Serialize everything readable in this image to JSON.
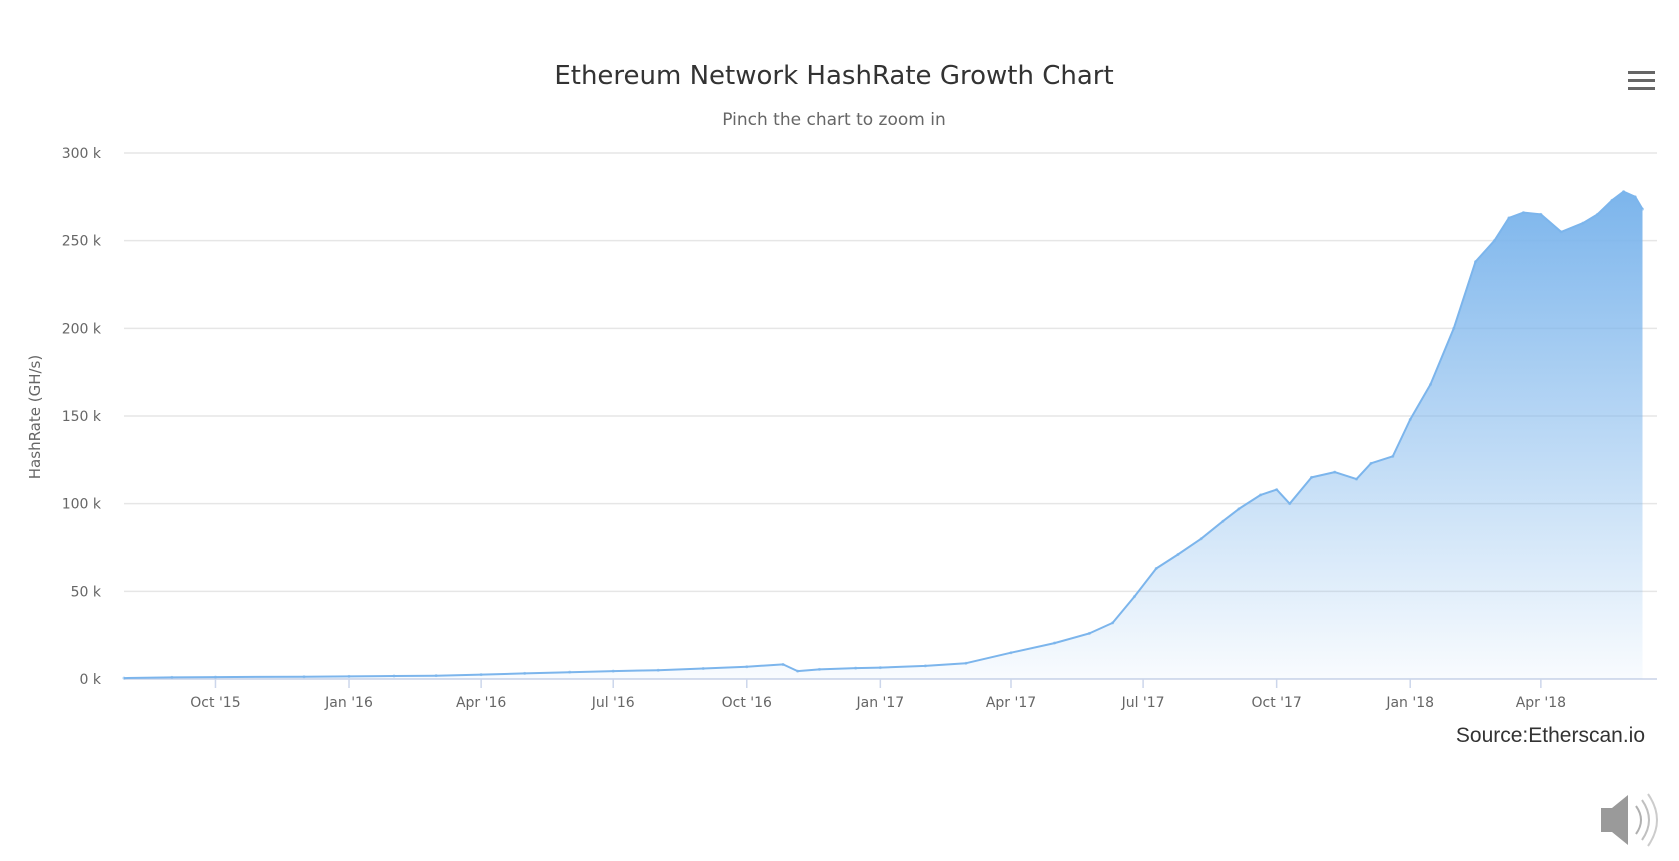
{
  "chart_data": {
    "type": "area",
    "title": "Ethereum Network HashRate Growth Chart",
    "subtitle": "Pinch the chart to zoom in",
    "xlabel": "",
    "ylabel": "HashRate (GH/s)",
    "ylim": [
      0,
      300000
    ],
    "xlim": [
      "2015-07-30",
      "2018-06-20"
    ],
    "y_ticks": [
      {
        "value": 0,
        "label": "0 k"
      },
      {
        "value": 50000,
        "label": "50 k"
      },
      {
        "value": 100000,
        "label": "100 k"
      },
      {
        "value": 150000,
        "label": "150 k"
      },
      {
        "value": 200000,
        "label": "200 k"
      },
      {
        "value": 250000,
        "label": "250 k"
      },
      {
        "value": 300000,
        "label": "300 k"
      }
    ],
    "x_ticks": [
      {
        "date": "2015-10-01",
        "label": "Oct '15"
      },
      {
        "date": "2016-01-01",
        "label": "Jan '16"
      },
      {
        "date": "2016-04-01",
        "label": "Apr '16"
      },
      {
        "date": "2016-07-01",
        "label": "Jul '16"
      },
      {
        "date": "2016-10-01",
        "label": "Oct '16"
      },
      {
        "date": "2017-01-01",
        "label": "Jan '17"
      },
      {
        "date": "2017-04-01",
        "label": "Apr '17"
      },
      {
        "date": "2017-07-01",
        "label": "Jul '17"
      },
      {
        "date": "2017-10-01",
        "label": "Oct '17"
      },
      {
        "date": "2018-01-01",
        "label": "Jan '18"
      },
      {
        "date": "2018-04-01",
        "label": "Apr '18"
      }
    ],
    "grid": true,
    "legend": "none",
    "color": "#7cb5ec",
    "series": [
      {
        "x": [
          "2015-07-30",
          "2015-09-01",
          "2015-10-01",
          "2015-12-01",
          "2016-01-01",
          "2016-02-01",
          "2016-03-01",
          "2016-04-01",
          "2016-05-01",
          "2016-06-01",
          "2016-07-01",
          "2016-08-01",
          "2016-09-01",
          "2016-10-01",
          "2016-10-26",
          "2016-11-05",
          "2016-11-20",
          "2016-12-15",
          "2017-01-01",
          "2017-02-01",
          "2017-03-01",
          "2017-04-01",
          "2017-05-01",
          "2017-05-25",
          "2017-06-10",
          "2017-06-25",
          "2017-07-10",
          "2017-07-25",
          "2017-08-10",
          "2017-08-25",
          "2017-09-05",
          "2017-09-20",
          "2017-10-01",
          "2017-10-10",
          "2017-10-25",
          "2017-11-10",
          "2017-11-25",
          "2017-12-05",
          "2017-12-20",
          "2018-01-01",
          "2018-01-15",
          "2018-01-31",
          "2018-02-15",
          "2018-02-28",
          "2018-03-10",
          "2018-03-20",
          "2018-04-01",
          "2018-04-15",
          "2018-04-30",
          "2018-05-10",
          "2018-05-20",
          "2018-05-28",
          "2018-06-05",
          "2018-06-10"
        ],
        "y": [
          500,
          900,
          1100,
          1300,
          1500,
          1700,
          1900,
          2500,
          3200,
          3900,
          4500,
          5000,
          6000,
          7000,
          8300,
          4500,
          5500,
          6200,
          6500,
          7500,
          9000,
          15000,
          20500,
          26000,
          32000,
          47000,
          63000,
          71000,
          80000,
          90000,
          97000,
          105000,
          108000,
          100000,
          115000,
          118000,
          114000,
          123000,
          127000,
          148000,
          168000,
          200000,
          238000,
          250000,
          263000,
          266000,
          265000,
          255000,
          260000,
          265000,
          273000,
          278000,
          275000,
          268000
        ]
      }
    ],
    "credits": "Source:Etherscan.io"
  },
  "ui": {
    "menu_icon": "hamburger-menu-icon",
    "speaker_icon": "speaker-icon"
  }
}
